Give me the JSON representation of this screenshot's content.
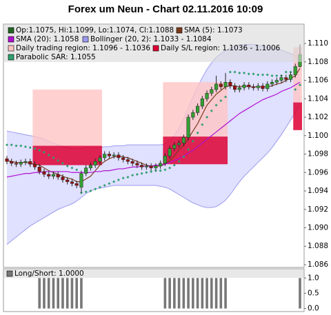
{
  "chart_data": [
    {
      "type": "candlestick",
      "title": "Forex um Neun - Chart 02.11.2016 10:09",
      "ylim": [
        1.0857,
        1.1121
      ],
      "yticks": [
        1.086,
        1.088,
        {
          "value": 1.09,
          "label": "1.090"
        },
        1.092,
        1.094,
        1.096,
        1.098,
        {
          "value": 1.1,
          "label": "1.100"
        },
        1.102,
        1.104,
        1.106,
        1.108,
        {
          "value": 1.11,
          "label": "1.110"
        }
      ],
      "candles": {
        "name": "Op:1.1075, Hi:1.1099, Lo:1.1074, Cl:1.1088",
        "color": "#226622",
        "up_color": "#33a033",
        "down_color": "#991111",
        "open": [
          1.0975,
          1.0972,
          1.097,
          1.0969,
          1.0971,
          1.0972,
          1.0969,
          1.0966,
          1.0961,
          1.0958,
          1.0956,
          1.0958,
          1.0955,
          1.0952,
          1.095,
          1.0948,
          1.0944,
          1.0959,
          1.0965,
          1.0968,
          1.0972,
          1.0976,
          1.098,
          1.0978,
          1.0979,
          1.0976,
          1.0974,
          1.0972,
          1.097,
          1.0968,
          1.0966,
          1.0967,
          1.0965,
          1.0967,
          1.097,
          1.0978,
          1.0986,
          1.099,
          1.0992,
          1.0998,
          1.102,
          1.1025,
          1.1032,
          1.104,
          1.1046,
          1.105,
          1.1056,
          1.1053,
          1.1058,
          1.1054,
          1.105,
          1.1052,
          1.1055,
          1.1053,
          1.1052,
          1.1054,
          1.1051,
          1.1056,
          1.1058,
          1.106,
          1.1063,
          1.1061,
          1.1066,
          1.1075
        ],
        "high": [
          1.0978,
          1.0975,
          1.0973,
          1.0974,
          1.0975,
          1.0975,
          1.0972,
          1.0969,
          1.0964,
          1.0961,
          1.0961,
          1.0961,
          1.0958,
          1.0955,
          1.0953,
          1.0951,
          1.0962,
          1.0968,
          1.0971,
          1.0975,
          1.0979,
          1.0983,
          1.0983,
          1.0982,
          1.0982,
          1.0979,
          1.0977,
          1.0975,
          1.0973,
          1.0971,
          1.097,
          1.097,
          1.097,
          1.0973,
          1.0981,
          1.0989,
          1.0993,
          1.0995,
          1.1001,
          1.1023,
          1.1028,
          1.1035,
          1.1043,
          1.1049,
          1.1053,
          1.1065,
          1.1059,
          1.1068,
          1.1061,
          1.1057,
          1.1055,
          1.1058,
          1.1058,
          1.1056,
          1.1057,
          1.1057,
          1.1059,
          1.1061,
          1.1063,
          1.1066,
          1.1066,
          1.1069,
          1.1078,
          1.1099
        ],
        "low": [
          1.0969,
          1.0967,
          1.0966,
          1.0966,
          1.0968,
          1.0966,
          1.0963,
          1.0958,
          1.0955,
          1.0953,
          1.0953,
          1.0952,
          1.0949,
          1.0947,
          1.0945,
          1.0943,
          1.0938,
          1.0956,
          1.0962,
          1.0965,
          1.0969,
          1.0973,
          1.0975,
          1.0975,
          1.0973,
          1.0971,
          1.0969,
          1.0967,
          1.0965,
          1.0963,
          1.0963,
          1.0962,
          1.0962,
          1.0964,
          1.0967,
          1.0975,
          1.0983,
          1.0987,
          1.0989,
          1.0995,
          1.1017,
          1.1022,
          1.1029,
          1.1037,
          1.1043,
          1.1047,
          1.105,
          1.105,
          1.1051,
          1.1047,
          1.1047,
          1.1049,
          1.105,
          1.1049,
          1.1049,
          1.1048,
          1.1048,
          1.1053,
          1.1055,
          1.1057,
          1.1058,
          1.1058,
          1.1063,
          1.1074
        ],
        "close": [
          1.0972,
          1.097,
          1.0969,
          1.0971,
          1.0972,
          1.0969,
          1.0966,
          1.0961,
          1.0958,
          1.0956,
          1.0958,
          1.0955,
          1.0952,
          1.095,
          1.0948,
          1.0946,
          1.0959,
          1.0965,
          1.0968,
          1.0972,
          1.0976,
          1.098,
          1.0978,
          1.0979,
          1.0976,
          1.0974,
          1.0972,
          1.097,
          1.0968,
          1.0966,
          1.0967,
          1.0965,
          1.0967,
          1.097,
          1.0978,
          1.0986,
          1.099,
          1.0992,
          1.0998,
          1.102,
          1.1025,
          1.1032,
          1.104,
          1.1046,
          1.105,
          1.1056,
          1.1053,
          1.1058,
          1.1054,
          1.105,
          1.1052,
          1.1055,
          1.1053,
          1.1052,
          1.1054,
          1.1051,
          1.1056,
          1.1058,
          1.106,
          1.1063,
          1.1061,
          1.1066,
          1.1075,
          1.1088
        ]
      },
      "series": [
        {
          "name": "SMA (5): 1.1073",
          "color": "#7b3a1a",
          "values": [
            1.0973,
            1.0972,
            1.0971,
            1.0971,
            1.0971,
            1.097,
            1.0969,
            1.0968,
            1.0965,
            1.0962,
            1.096,
            1.0958,
            1.0956,
            1.0954,
            1.0953,
            1.095,
            1.095,
            1.0953,
            1.0956,
            1.0962,
            1.0968,
            1.0972,
            1.0975,
            1.0977,
            1.0978,
            1.0977,
            1.0976,
            1.0974,
            1.0972,
            1.097,
            1.0968,
            1.0967,
            1.0967,
            1.0967,
            1.0969,
            1.0973,
            1.0978,
            1.0985,
            1.0989,
            1.0997,
            1.1005,
            1.1013,
            1.1023,
            1.1033,
            1.1039,
            1.1045,
            1.1049,
            1.1053,
            1.1054,
            1.1054,
            1.1053,
            1.1054,
            1.1053,
            1.1053,
            1.1053,
            1.1053,
            1.1053,
            1.1054,
            1.1056,
            1.1057,
            1.106,
            1.1062,
            1.1065,
            1.1073
          ]
        },
        {
          "name": "SMA (20): 1.1058",
          "color": "#b010d0",
          "values": [
            1.0955,
            1.0956,
            1.0957,
            1.0958,
            1.0959,
            1.0959,
            1.096,
            1.096,
            1.0961,
            1.0961,
            1.0961,
            1.0961,
            1.0961,
            1.0961,
            1.096,
            1.096,
            1.096,
            1.096,
            1.096,
            1.0961,
            1.0961,
            1.0962,
            1.0962,
            1.0963,
            1.0964,
            1.0964,
            1.0965,
            1.0966,
            1.0966,
            1.0967,
            1.0967,
            1.0967,
            1.0968,
            1.0968,
            1.0969,
            1.0971,
            1.0973,
            1.0975,
            1.0978,
            1.0981,
            1.0984,
            1.0988,
            1.0992,
            1.0996,
            1.1,
            1.1004,
            1.1008,
            1.1012,
            1.1016,
            1.102,
            1.1024,
            1.1027,
            1.103,
            1.1033,
            1.1036,
            1.1039,
            1.1041,
            1.1043,
            1.1045,
            1.1048,
            1.105,
            1.1052,
            1.1055,
            1.1058
          ]
        }
      ],
      "bands": {
        "name": "Bollinger (20, 2): 1.1033 - 1.1084",
        "color": "#9a9aee",
        "upper": [
          1.1005,
          1.1004,
          1.1003,
          1.1002,
          1.1001,
          1.1,
          1.0999,
          1.0998,
          1.0996,
          1.0994,
          1.0992,
          1.099,
          1.0988,
          1.0987,
          1.0986,
          1.0986,
          1.0986,
          1.0987,
          1.0987,
          1.0987,
          1.0987,
          1.0988,
          1.0988,
          1.0989,
          1.0989,
          1.0989,
          1.099,
          1.099,
          1.099,
          1.099,
          1.099,
          1.099,
          1.099,
          1.099,
          1.0991,
          1.0995,
          1.1,
          1.1008,
          1.1018,
          1.103,
          1.1042,
          1.1053,
          1.1063,
          1.1072,
          1.1079,
          1.1085,
          1.1089,
          1.1092,
          1.1095,
          1.1097,
          1.1098,
          1.1099,
          1.1099,
          1.1099,
          1.1098,
          1.1097,
          1.1096,
          1.1095,
          1.1094,
          1.1093,
          1.1091,
          1.1089,
          1.1087,
          1.1084
        ],
        "lower": [
          1.0882,
          1.0886,
          1.089,
          1.0894,
          1.0898,
          1.0902,
          1.0905,
          1.0908,
          1.0911,
          1.0914,
          1.0917,
          1.092,
          1.0922,
          1.0924,
          1.0926,
          1.0929,
          1.0933,
          1.0937,
          1.094,
          1.0942,
          1.0943,
          1.0944,
          1.0945,
          1.0946,
          1.0946,
          1.0946,
          1.0946,
          1.0946,
          1.0946,
          1.0946,
          1.0946,
          1.0946,
          1.0946,
          1.0945,
          1.0944,
          1.0942,
          1.0939,
          1.0936,
          1.0933,
          1.093,
          1.0927,
          1.0925,
          1.0923,
          1.0922,
          1.0922,
          1.0923,
          1.0926,
          1.093,
          1.0936,
          1.0943,
          1.095,
          1.0956,
          1.0961,
          1.0966,
          1.0971,
          1.0976,
          1.0981,
          1.0987,
          1.0994,
          1.1001,
          1.1009,
          1.1017,
          1.1025,
          1.1033
        ]
      },
      "regions": [
        {
          "name": "Daily trading region: 1.1096 - 1.1036",
          "color": "#ffc4c4",
          "spans": [
            {
              "start": 6,
              "end": 20,
              "top": 1.105,
              "bottom": 1.0989
            },
            {
              "start": 34,
              "end": 47,
              "top": 1.1058,
              "bottom": 1.0999
            },
            {
              "start": 62,
              "end": 63,
              "top": 1.1096,
              "bottom": 1.1036
            }
          ]
        },
        {
          "name": "Daily S/L region: 1.1036 - 1.1006",
          "color": "#dd0033",
          "spans": [
            {
              "start": 6,
              "end": 20,
              "top": 1.0989,
              "bottom": 1.0968
            },
            {
              "start": 34,
              "end": 47,
              "top": 1.0999,
              "bottom": 1.0969
            },
            {
              "start": 62,
              "end": 63,
              "top": 1.1036,
              "bottom": 1.1006
            }
          ]
        }
      ],
      "sar": {
        "name": "Parabolic SAR: 1.1055",
        "color": "#2fa070",
        "values": [
          1.099,
          1.099,
          1.0989,
          1.0989,
          1.0988,
          1.0987,
          1.0986,
          1.0984,
          1.0982,
          1.0979,
          1.0976,
          1.0973,
          1.097,
          1.0967,
          1.0965,
          1.0963,
          1.0938,
          1.0939,
          1.094,
          1.0942,
          1.0944,
          1.0946,
          1.0948,
          1.095,
          1.0952,
          1.0954,
          1.0955,
          1.0957,
          1.0958,
          1.0959,
          1.096,
          1.0961,
          1.0962,
          1.0962,
          1.0963,
          1.0965,
          1.0968,
          1.0972,
          1.0977,
          1.0985,
          1.0994,
          1.1003,
          1.1012,
          1.102,
          1.1027,
          1.1033,
          1.1038,
          1.1042,
          1.1069,
          1.1069,
          1.1068,
          1.1068,
          1.1067,
          1.1067,
          1.1066,
          1.1066,
          1.1066,
          1.1065,
          1.1065,
          1.1065,
          1.1069,
          1.1069,
          1.105,
          1.1055
        ]
      }
    },
    {
      "type": "bar",
      "ylim": [
        -0.1,
        1.3
      ],
      "yticks": [
        {
          "value": 0,
          "label": "0.0"
        },
        {
          "value": 0.5,
          "label": "0.5"
        },
        {
          "value": 1,
          "label": "1.0"
        }
      ],
      "series": [
        {
          "name": "Long/Short: 1.0000",
          "color": "#777777",
          "values": [
            0,
            0,
            0,
            0,
            0,
            0,
            0,
            1,
            1,
            1,
            1,
            1,
            1,
            1,
            1,
            1,
            1,
            0,
            0,
            0,
            0,
            0,
            0,
            0,
            0,
            0,
            0,
            0,
            0,
            0,
            0,
            0,
            0,
            0,
            1,
            1,
            1,
            1,
            1,
            1,
            1,
            1,
            1,
            1,
            1,
            1,
            1,
            1,
            0,
            0,
            0,
            0,
            0,
            0,
            0,
            0,
            0,
            0,
            0,
            0,
            0,
            0,
            0,
            1
          ]
        }
      ]
    }
  ]
}
